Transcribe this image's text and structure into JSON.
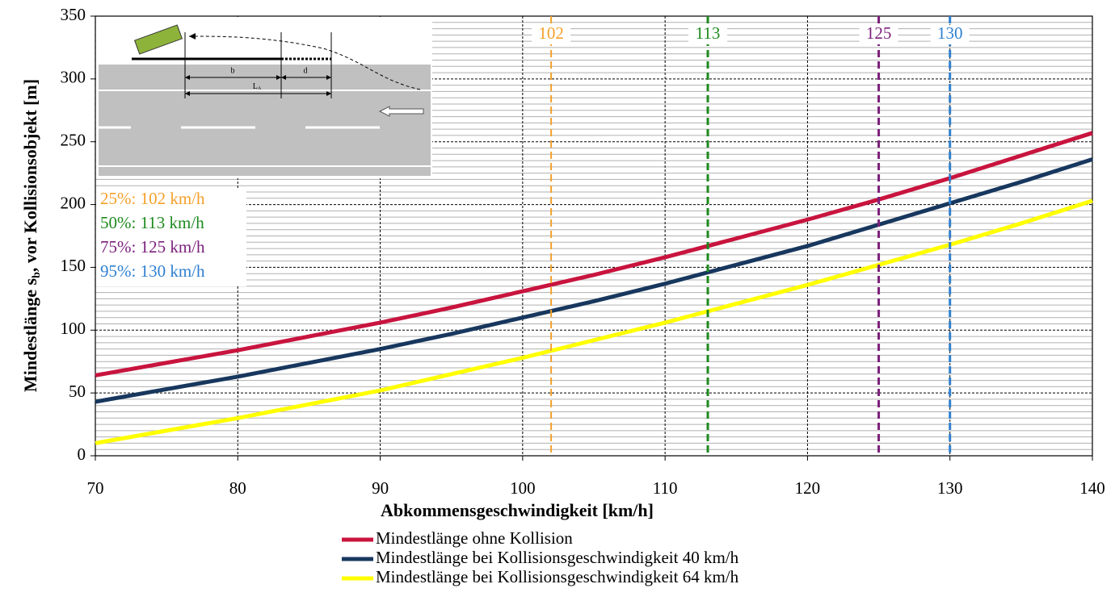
{
  "chart_data": {
    "type": "line",
    "x_label": "Abkommensgeschwindigkeit [km/h]",
    "y_label_parts": [
      "Mindestlänge s",
      "b",
      ", vor Kollisionsobjekt [m]"
    ],
    "x": [
      70,
      75,
      80,
      85,
      90,
      95,
      100,
      105,
      110,
      115,
      120,
      125,
      130,
      135,
      140
    ],
    "series": [
      {
        "name": "Mindestlänge ohne Kollision",
        "color": "#c8143e",
        "values": [
          64,
          74,
          84,
          95,
          106,
          118,
          131,
          144,
          158,
          173,
          188,
          204,
          221,
          239,
          257
        ]
      },
      {
        "name": "Mindestlänge bei Kollisionsgeschwindigkeit 40 km/h",
        "color": "#17375e",
        "values": [
          43,
          53,
          63,
          74,
          85,
          97,
          110,
          123,
          137,
          152,
          167,
          184,
          201,
          218,
          236
        ]
      },
      {
        "name": "Mindestlänge bei Kollisionsgeschwindigkeit 64 km/h",
        "color": "#ffff00",
        "values": [
          10,
          20,
          30,
          41,
          52,
          65,
          78,
          92,
          106,
          121,
          136,
          152,
          168,
          185,
          203
        ]
      }
    ],
    "xlim": [
      70,
      140
    ],
    "ylim": [
      0,
      350
    ],
    "xticks": [
      70,
      80,
      90,
      100,
      110,
      120,
      130,
      140
    ],
    "yticks": [
      0,
      50,
      100,
      150,
      200,
      250,
      300,
      350
    ],
    "minor_yticks": [
      5,
      10,
      15,
      20,
      25,
      30,
      35,
      40,
      45,
      55,
      60,
      65,
      70,
      75,
      80,
      85,
      90,
      95,
      105,
      110,
      115,
      120,
      125,
      130,
      135,
      140,
      145,
      155,
      160,
      165,
      170,
      175,
      180,
      185,
      190,
      195,
      205,
      210,
      215,
      220,
      225,
      230,
      235,
      240,
      245,
      255,
      260,
      265,
      270,
      275,
      280,
      285,
      290,
      295,
      305,
      310,
      315,
      320,
      325,
      330,
      335,
      340,
      345
    ],
    "grid": true,
    "reference_lines": [
      {
        "value": 102,
        "color": "#f5a02a",
        "annotation": "25%: 102 km/h"
      },
      {
        "value": 113,
        "color": "#1e8a1e",
        "annotation": "50%: 113 km/h"
      },
      {
        "value": 125,
        "color": "#7b1f7b",
        "annotation": "75%: 125 km/h"
      },
      {
        "value": 130,
        "color": "#2f80d0",
        "annotation": "95%: 130 km/h"
      }
    ],
    "inset_labels": {
      "b": "b",
      "d": "d",
      "la": "L",
      "la_sub": "A"
    }
  }
}
